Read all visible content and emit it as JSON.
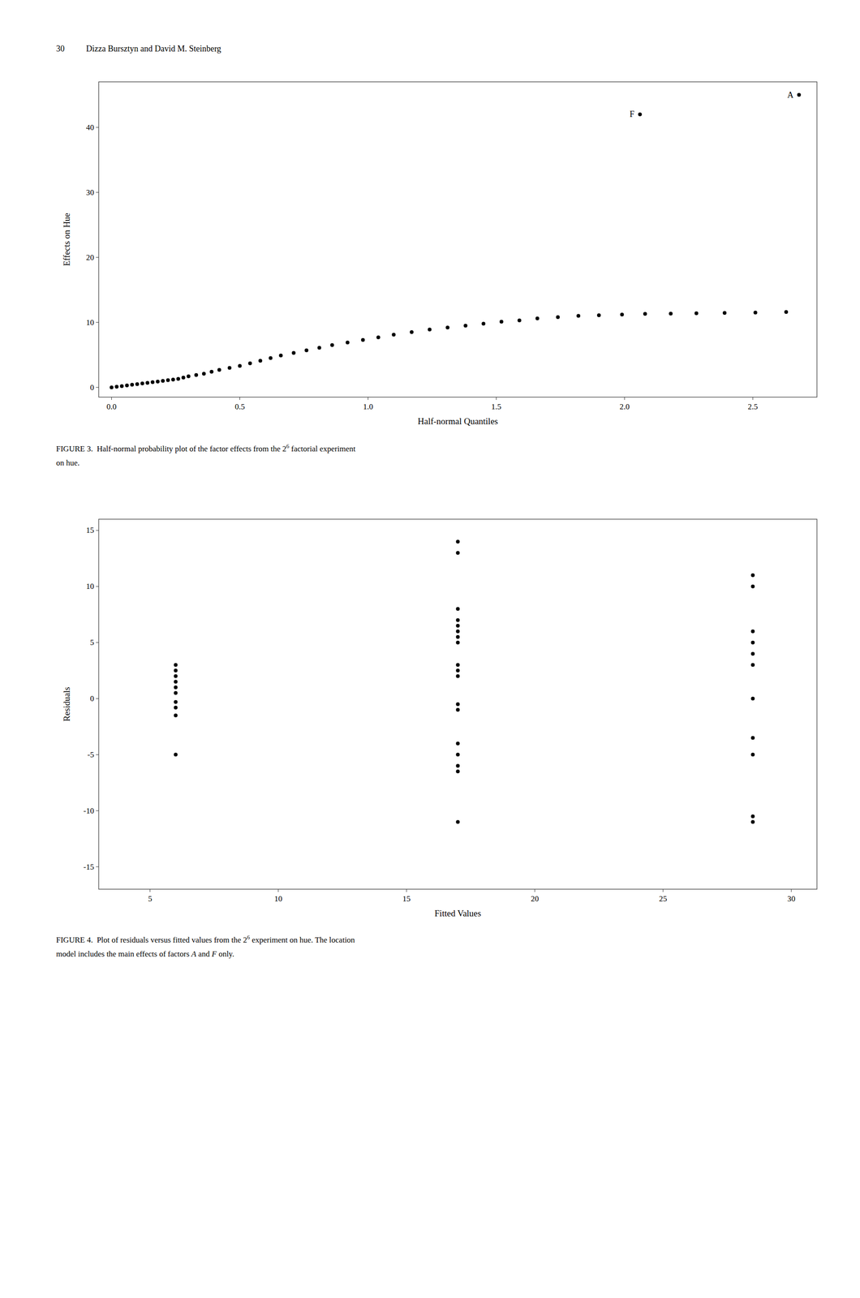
{
  "page_header": {
    "number": "30",
    "text": "Dizza Bursztyn and David M. Steinberg"
  },
  "chart_data": [
    {
      "type": "scatter",
      "x_label": "Half-normal Quantiles",
      "y_label": "Effects on Hue",
      "xlim": [
        -0.05,
        2.75
      ],
      "ylim": [
        -1.5,
        47
      ],
      "xticks": [
        {
          "value": 0.0,
          "label": "0.0"
        },
        0.5,
        {
          "value": 1.0,
          "label": "1.0"
        },
        1.5,
        {
          "value": 2.0,
          "label": "2.0"
        },
        2.5
      ],
      "yticks": [
        0,
        10,
        20,
        30,
        40
      ],
      "color": "#000000",
      "x": [
        0.0,
        0.02,
        0.04,
        0.06,
        0.08,
        0.1,
        0.12,
        0.14,
        0.16,
        0.18,
        0.2,
        0.22,
        0.24,
        0.26,
        0.28,
        0.3,
        0.33,
        0.36,
        0.39,
        0.42,
        0.46,
        0.5,
        0.54,
        0.58,
        0.62,
        0.66,
        0.71,
        0.76,
        0.81,
        0.86,
        0.92,
        0.98,
        1.04,
        1.1,
        1.17,
        1.24,
        1.31,
        1.38,
        1.45,
        1.52,
        1.59,
        1.66,
        1.74,
        1.82,
        1.9,
        1.99,
        2.08,
        2.18,
        2.28,
        2.39,
        2.51,
        2.63,
        2.06,
        2.68
      ],
      "values": [
        0.0,
        0.1,
        0.2,
        0.3,
        0.4,
        0.5,
        0.6,
        0.7,
        0.8,
        0.9,
        1.0,
        1.1,
        1.2,
        1.3,
        1.5,
        1.7,
        1.9,
        2.1,
        2.4,
        2.7,
        3.0,
        3.3,
        3.7,
        4.1,
        4.5,
        4.9,
        5.3,
        5.7,
        6.1,
        6.5,
        6.9,
        7.3,
        7.7,
        8.1,
        8.5,
        8.9,
        9.2,
        9.5,
        9.8,
        10.1,
        10.3,
        10.6,
        10.8,
        11.0,
        11.1,
        11.2,
        11.3,
        11.35,
        11.4,
        11.45,
        11.5,
        11.6,
        42.0,
        45.0
      ],
      "annotations": [
        {
          "text": "F",
          "x": 2.06,
          "y": 42.0
        },
        {
          "text": "A",
          "x": 2.68,
          "y": 45.0
        }
      ],
      "caption": [
        [
          {
            "text": "FIGURE 3.  Half-normal probability plot of the factor effects from the 2"
          },
          {
            "text": "6",
            "style": "superscript"
          },
          {
            "text": " factorial experiment"
          }
        ],
        [
          {
            "text": "on hue."
          }
        ]
      ]
    },
    {
      "type": "scatter",
      "x_label": "Fitted Values",
      "y_label": "Residuals",
      "xlim": [
        3,
        31
      ],
      "ylim": [
        -17,
        16
      ],
      "xticks": [
        5,
        10,
        15,
        20,
        25,
        30
      ],
      "yticks": [
        -15,
        -10,
        -5,
        0,
        5,
        10,
        15
      ],
      "color": "#000000",
      "x": [
        6.0,
        6.0,
        6.0,
        6.0,
        6.0,
        6.0,
        6.0,
        6.0,
        6.0,
        6.0,
        17.0,
        17.0,
        17.0,
        17.0,
        17.0,
        17.0,
        17.0,
        17.0,
        17.0,
        17.0,
        17.0,
        17.0,
        17.0,
        17.0,
        17.0,
        17.0,
        17.0,
        17.0,
        28.5,
        28.5,
        28.5,
        28.5,
        28.5,
        28.5,
        28.5,
        28.5,
        28.5,
        28.5,
        28.5
      ],
      "values": [
        3.0,
        2.5,
        2.0,
        1.5,
        1.0,
        0.5,
        -0.3,
        -0.8,
        -1.5,
        -5.0,
        14.0,
        13.0,
        8.0,
        7.0,
        6.5,
        6.0,
        5.5,
        5.0,
        3.0,
        2.5,
        2.0,
        -0.5,
        -1.0,
        -4.0,
        -5.0,
        -6.0,
        -6.5,
        -11.0,
        11.0,
        10.0,
        6.0,
        5.0,
        4.0,
        3.0,
        0.0,
        -3.5,
        -5.0,
        -10.5,
        -11.0
      ],
      "caption": [
        [
          {
            "text": "FIGURE 4.  Plot of residuals versus fitted values from the 2"
          },
          {
            "text": "6",
            "style": "superscript"
          },
          {
            "text": " experiment on hue. The location"
          }
        ],
        [
          {
            "text": "model includes the main effects of factors "
          },
          {
            "text": "A",
            "style": "italic"
          },
          {
            "text": " and "
          },
          {
            "text": "F",
            "style": "italic"
          },
          {
            "text": " only."
          }
        ]
      ]
    }
  ]
}
